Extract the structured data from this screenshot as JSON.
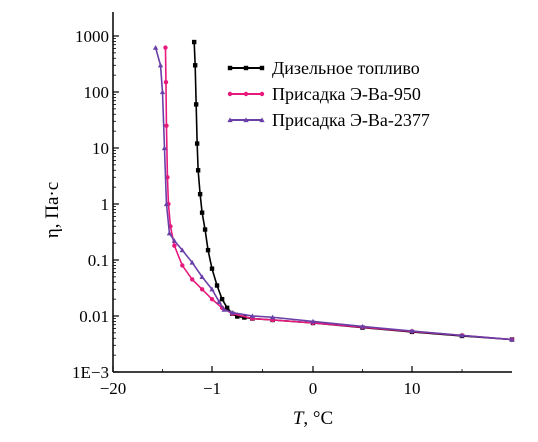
{
  "chart_data": {
    "type": "line",
    "xlabel_var": "T",
    "xlabel_unit": ", °C",
    "ylabel": "η, Па·с",
    "y_scale": "log",
    "ylim": [
      0.001,
      1000
    ],
    "x_ticks": [
      {
        "label": "−20",
        "pos": 0
      },
      {
        "label": "−1",
        "pos": 1
      },
      {
        "label": "0",
        "pos": 2
      },
      {
        "label": "10",
        "pos": 3
      }
    ],
    "y_ticks": [
      {
        "label": "1000",
        "value": 1000
      },
      {
        "label": "100",
        "value": 100
      },
      {
        "label": "10",
        "value": 10
      },
      {
        "label": "1",
        "value": 1
      },
      {
        "label": "0.1",
        "value": 0.1
      },
      {
        "label": "0.01",
        "value": 0.01
      },
      {
        "label": "1E−3",
        "value": 0.001
      }
    ],
    "legend_position": "top-right",
    "series": [
      {
        "name": "Дизельное топливо",
        "color": "#000000",
        "marker": "square",
        "points": [
          [
            0.82,
            780
          ],
          [
            0.83,
            300
          ],
          [
            0.84,
            60
          ],
          [
            0.85,
            12
          ],
          [
            0.86,
            4
          ],
          [
            0.88,
            1.5
          ],
          [
            0.9,
            0.7
          ],
          [
            0.93,
            0.35
          ],
          [
            0.96,
            0.15
          ],
          [
            1.0,
            0.07
          ],
          [
            1.05,
            0.035
          ],
          [
            1.1,
            0.02
          ],
          [
            1.15,
            0.014
          ],
          [
            1.2,
            0.011
          ],
          [
            1.25,
            0.0098
          ],
          [
            1.32,
            0.0094
          ],
          [
            1.4,
            0.009
          ],
          [
            1.6,
            0.0085
          ],
          [
            2.0,
            0.0075
          ],
          [
            2.5,
            0.0062
          ],
          [
            3.0,
            0.0052
          ],
          [
            3.5,
            0.0044
          ],
          [
            4.0,
            0.0038
          ]
        ]
      },
      {
        "name": "Присадка Э-Ва-950",
        "color": "#e8197c",
        "marker": "circle",
        "points": [
          [
            0.53,
            620
          ],
          [
            0.535,
            150
          ],
          [
            0.54,
            25
          ],
          [
            0.55,
            3
          ],
          [
            0.56,
            1
          ],
          [
            0.58,
            0.4
          ],
          [
            0.62,
            0.18
          ],
          [
            0.7,
            0.08
          ],
          [
            0.8,
            0.045
          ],
          [
            0.9,
            0.03
          ],
          [
            1.0,
            0.02
          ],
          [
            1.1,
            0.014
          ],
          [
            1.2,
            0.011
          ],
          [
            1.4,
            0.009
          ],
          [
            1.6,
            0.0085
          ],
          [
            2.0,
            0.0075
          ],
          [
            2.5,
            0.0063
          ],
          [
            3.0,
            0.0053
          ],
          [
            3.5,
            0.0045
          ],
          [
            4.0,
            0.0038
          ]
        ]
      },
      {
        "name": "Присадка Э-Ва-2377",
        "color": "#6a3fa8",
        "marker": "triangle",
        "points": [
          [
            0.43,
            620
          ],
          [
            0.48,
            300
          ],
          [
            0.5,
            100
          ],
          [
            0.52,
            10
          ],
          [
            0.54,
            1
          ],
          [
            0.57,
            0.3
          ],
          [
            0.62,
            0.22
          ],
          [
            0.7,
            0.15
          ],
          [
            0.8,
            0.09
          ],
          [
            0.9,
            0.05
          ],
          [
            1.0,
            0.03
          ],
          [
            1.07,
            0.018
          ],
          [
            1.12,
            0.013
          ],
          [
            1.2,
            0.0115
          ],
          [
            1.4,
            0.01
          ],
          [
            1.6,
            0.0095
          ],
          [
            2.0,
            0.008
          ],
          [
            2.5,
            0.0065
          ],
          [
            3.0,
            0.0054
          ],
          [
            3.5,
            0.0045
          ],
          [
            4.0,
            0.0038
          ]
        ]
      }
    ]
  }
}
